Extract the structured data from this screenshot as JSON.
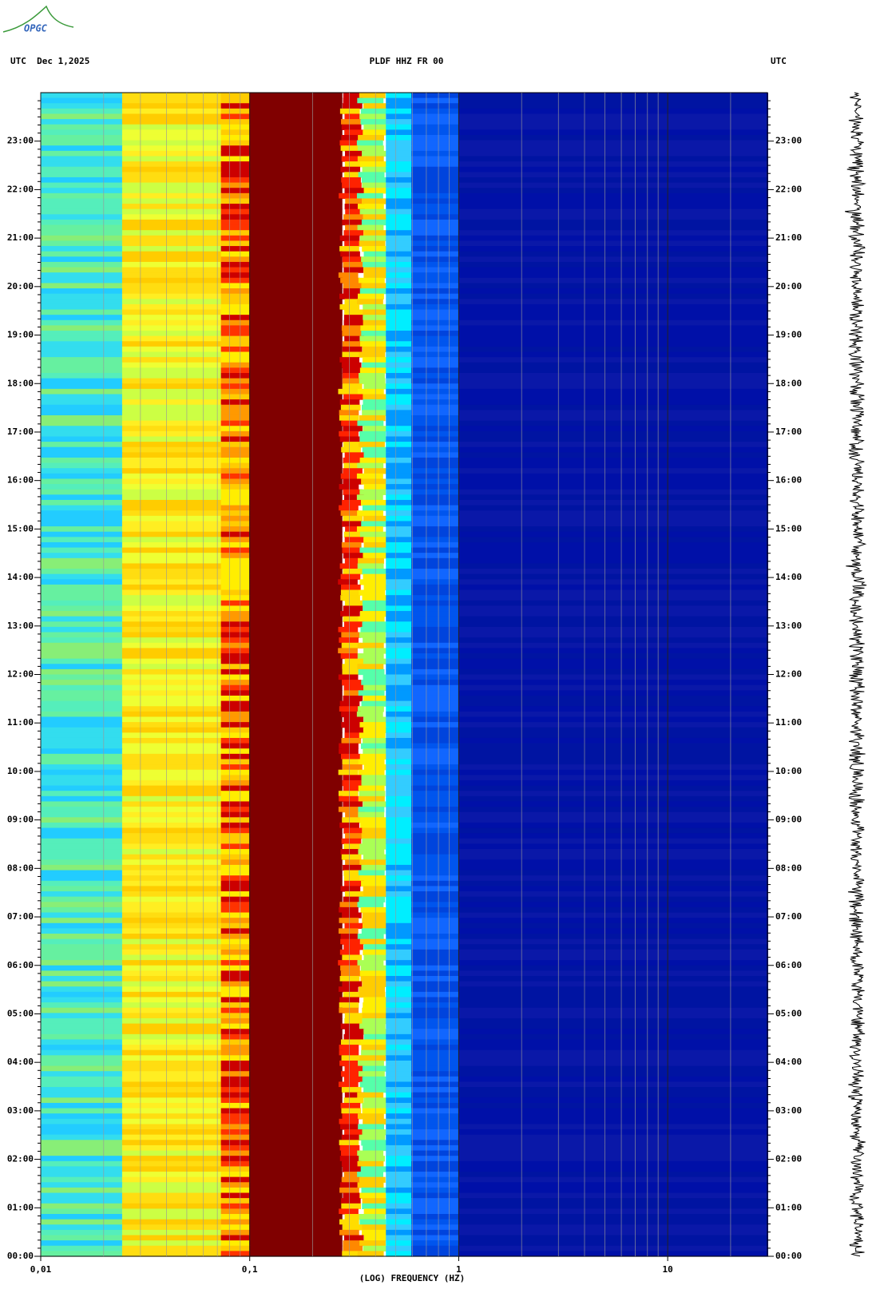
{
  "logo": "OPGC",
  "chart_data": {
    "type": "spectrogram",
    "header_left": "UTC  Dec 1,2025",
    "title": "PLDF HHZ FR 00",
    "header_right": "UTC",
    "x_label": "(LOG) FREQUENCY (HZ)",
    "x_scale": "log",
    "xlim": [
      0.01,
      30
    ],
    "xticks": [
      {
        "value": 0.01,
        "label": "0,01"
      },
      {
        "value": 0.1,
        "label": "0,1"
      },
      1,
      10
    ],
    "ylim": [
      0,
      24
    ],
    "yticks": [
      {
        "value": 0,
        "label": "00:00"
      },
      {
        "value": 1,
        "label": "01:00"
      },
      {
        "value": 2,
        "label": "02:00"
      },
      {
        "value": 3,
        "label": "03:00"
      },
      {
        "value": 4,
        "label": "04:00"
      },
      {
        "value": 5,
        "label": "05:00"
      },
      {
        "value": 6,
        "label": "06:00"
      },
      {
        "value": 7,
        "label": "07:00"
      },
      {
        "value": 8,
        "label": "08:00"
      },
      {
        "value": 9,
        "label": "09:00"
      },
      {
        "value": 10,
        "label": "10:00"
      },
      {
        "value": 11,
        "label": "11:00"
      },
      {
        "value": 12,
        "label": "12:00"
      },
      {
        "value": 13,
        "label": "13:00"
      },
      {
        "value": 14,
        "label": "14:00"
      },
      {
        "value": 15,
        "label": "15:00"
      },
      {
        "value": 16,
        "label": "16:00"
      },
      {
        "value": 17,
        "label": "17:00"
      },
      {
        "value": 18,
        "label": "18:00"
      },
      {
        "value": 19,
        "label": "19:00"
      },
      {
        "value": 20,
        "label": "20:00"
      },
      {
        "value": 21,
        "label": "21:00"
      },
      {
        "value": 22,
        "label": "22:00"
      },
      {
        "value": 23,
        "label": "23:00"
      }
    ]
  }
}
